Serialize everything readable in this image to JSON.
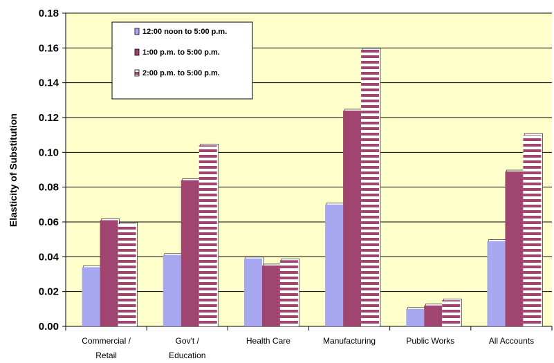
{
  "chart_data": {
    "type": "bar",
    "ylabel": "Elasticity of Substitution",
    "ylim": [
      0,
      0.18
    ],
    "yticks": [
      "0.00",
      "0.02",
      "0.04",
      "0.06",
      "0.08",
      "0.10",
      "0.12",
      "0.14",
      "0.16",
      "0.18"
    ],
    "categories": [
      [
        "Commercial /",
        "Retail"
      ],
      [
        "Gov't /",
        "Education"
      ],
      [
        "Health Care"
      ],
      [
        "Manufacturing"
      ],
      [
        "Public Works"
      ],
      [
        "All Accounts"
      ]
    ],
    "series": [
      {
        "name": "12:00 noon to 5:00 p.m.",
        "color": "#a8a8f0",
        "pattern": "solid",
        "values": [
          0.034,
          0.041,
          0.039,
          0.07,
          0.01,
          0.049
        ]
      },
      {
        "name": "1:00 p.m. to 5:00 p.m.",
        "color": "#a04470",
        "pattern": "solid",
        "values": [
          0.061,
          0.084,
          0.035,
          0.124,
          0.012,
          0.089
        ]
      },
      {
        "name": "2:00 p.m. to 5:00 p.m.",
        "color": "#a04470",
        "pattern": "stripes",
        "values": [
          0.059,
          0.104,
          0.038,
          0.159,
          0.015,
          0.11
        ]
      }
    ],
    "grid": true,
    "legend": "top-left",
    "plot_background": "#ffffcc"
  }
}
